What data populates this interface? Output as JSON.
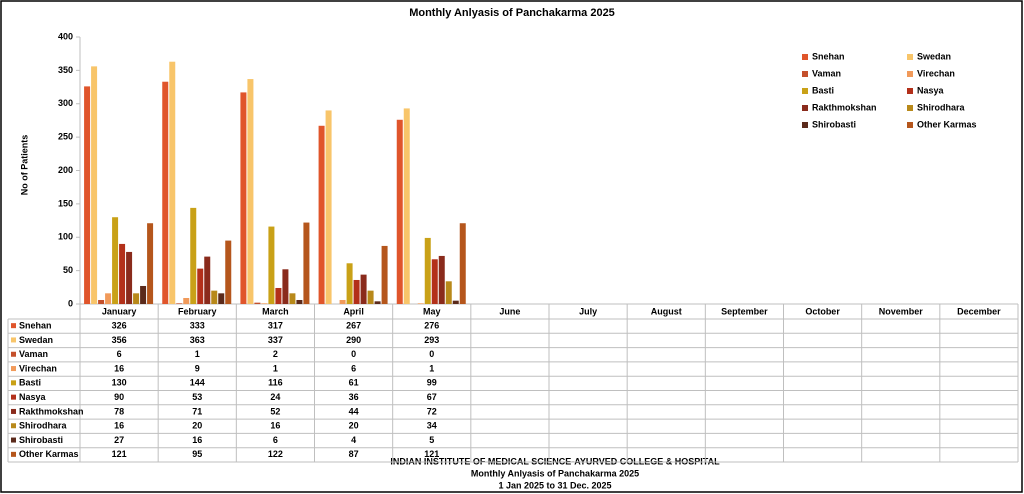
{
  "chart_data": {
    "type": "bar",
    "title": "Monthly Anlyasis of Panchakarma  2025",
    "y_label": "No of Patients",
    "categories": [
      "January",
      "February",
      "March",
      "April",
      "May",
      "June",
      "July",
      "August",
      "September",
      "October",
      "November",
      "December"
    ],
    "series": [
      {
        "name": "Snehan",
        "color": "#e0552b",
        "values": [
          326,
          333,
          317,
          267,
          276,
          null,
          null,
          null,
          null,
          null,
          null,
          null
        ]
      },
      {
        "name": "Swedan",
        "color": "#f8c56a",
        "values": [
          356,
          363,
          337,
          290,
          293,
          null,
          null,
          null,
          null,
          null,
          null,
          null
        ]
      },
      {
        "name": "Vaman",
        "color": "#c4502c",
        "values": [
          6,
          1,
          2,
          0,
          0,
          null,
          null,
          null,
          null,
          null,
          null,
          null
        ]
      },
      {
        "name": "Virechan",
        "color": "#f19a5a",
        "values": [
          16,
          9,
          1,
          6,
          1,
          null,
          null,
          null,
          null,
          null,
          null,
          null
        ]
      },
      {
        "name": "Basti",
        "color": "#c9a117",
        "values": [
          130,
          144,
          116,
          61,
          99,
          null,
          null,
          null,
          null,
          null,
          null,
          null
        ]
      },
      {
        "name": "Nasya",
        "color": "#b3301a",
        "values": [
          90,
          53,
          24,
          36,
          67,
          null,
          null,
          null,
          null,
          null,
          null,
          null
        ]
      },
      {
        "name": "Rakthmokshan",
        "color": "#8a2b1c",
        "values": [
          78,
          71,
          52,
          44,
          72,
          null,
          null,
          null,
          null,
          null,
          null,
          null
        ]
      },
      {
        "name": "Shirodhara",
        "color": "#b8891a",
        "values": [
          16,
          20,
          16,
          20,
          34,
          null,
          null,
          null,
          null,
          null,
          null,
          null
        ]
      },
      {
        "name": "Shirobasti",
        "color": "#5b2a1b",
        "values": [
          27,
          16,
          6,
          4,
          5,
          null,
          null,
          null,
          null,
          null,
          null,
          null
        ]
      },
      {
        "name": "Other Karmas",
        "color": "#b5561c",
        "values": [
          121,
          95,
          122,
          87,
          121,
          null,
          null,
          null,
          null,
          null,
          null,
          null
        ]
      }
    ],
    "ylim": [
      0,
      400
    ],
    "yticks": [
      0,
      50,
      100,
      150,
      200,
      250,
      300,
      350,
      400
    ],
    "grid": false,
    "legend": "top-right",
    "footer": [
      "INDIAN INSTITUTE OF MEDICAL SCIENCE-AYURVED  COLLEGE & HOSPITAL",
      "Monthly Anlyasis of Panchakarma  2025",
      "1 Jan 2025 to 31 Dec. 2025"
    ]
  }
}
